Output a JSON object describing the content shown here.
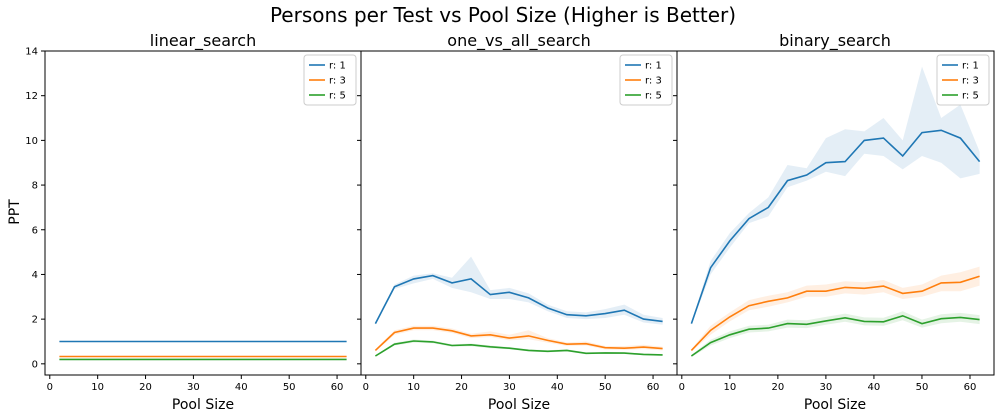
{
  "figure_title": "Persons per Test vs Pool Size (Higher is Better)",
  "colors": {
    "r1": "#1f77b4",
    "r3": "#ff7f0e",
    "r5": "#2ca02c"
  },
  "chart_data": [
    {
      "type": "line",
      "title": "linear_search",
      "xlabel": "Pool Size",
      "ylabel": "PPT",
      "xlim": [
        -1,
        65
      ],
      "ylim": [
        -0.5,
        14
      ],
      "xticks": [
        0,
        10,
        20,
        30,
        40,
        50,
        60
      ],
      "yticks": [
        0,
        2,
        4,
        6,
        8,
        10,
        12,
        14
      ],
      "legend": "top-right",
      "x": [
        2,
        6,
        10,
        14,
        18,
        22,
        26,
        30,
        34,
        38,
        42,
        46,
        50,
        54,
        58,
        62
      ],
      "series": [
        {
          "name": "r: 1",
          "color": "#1f77b4",
          "values": [
            1.0,
            1.0,
            1.0,
            1.0,
            1.0,
            1.0,
            1.0,
            1.0,
            1.0,
            1.0,
            1.0,
            1.0,
            1.0,
            1.0,
            1.0,
            1.0
          ],
          "lower": [
            0.98,
            0.98,
            0.98,
            0.98,
            0.98,
            0.98,
            0.98,
            0.98,
            0.98,
            0.98,
            0.98,
            0.98,
            0.98,
            0.98,
            0.98,
            0.98
          ],
          "upper": [
            1.02,
            1.02,
            1.02,
            1.02,
            1.02,
            1.02,
            1.02,
            1.02,
            1.02,
            1.02,
            1.02,
            1.02,
            1.02,
            1.02,
            1.02,
            1.02
          ]
        },
        {
          "name": "r: 3",
          "color": "#ff7f0e",
          "values": [
            0.33,
            0.33,
            0.33,
            0.33,
            0.33,
            0.33,
            0.33,
            0.33,
            0.33,
            0.33,
            0.33,
            0.33,
            0.33,
            0.33,
            0.33,
            0.33
          ],
          "lower": [
            0.32,
            0.32,
            0.32,
            0.32,
            0.32,
            0.32,
            0.32,
            0.32,
            0.32,
            0.32,
            0.32,
            0.32,
            0.32,
            0.32,
            0.32,
            0.32
          ],
          "upper": [
            0.34,
            0.34,
            0.34,
            0.34,
            0.34,
            0.34,
            0.34,
            0.34,
            0.34,
            0.34,
            0.34,
            0.34,
            0.34,
            0.34,
            0.34,
            0.34
          ]
        },
        {
          "name": "r: 5",
          "color": "#2ca02c",
          "values": [
            0.2,
            0.2,
            0.2,
            0.2,
            0.2,
            0.2,
            0.2,
            0.2,
            0.2,
            0.2,
            0.2,
            0.2,
            0.2,
            0.2,
            0.2,
            0.2
          ],
          "lower": [
            0.19,
            0.19,
            0.19,
            0.19,
            0.19,
            0.19,
            0.19,
            0.19,
            0.19,
            0.19,
            0.19,
            0.19,
            0.19,
            0.19,
            0.19,
            0.19
          ],
          "upper": [
            0.21,
            0.21,
            0.21,
            0.21,
            0.21,
            0.21,
            0.21,
            0.21,
            0.21,
            0.21,
            0.21,
            0.21,
            0.21,
            0.21,
            0.21,
            0.21
          ]
        }
      ]
    },
    {
      "type": "line",
      "title": "one_vs_all_search",
      "xlabel": "Pool Size",
      "xlim": [
        -1,
        65
      ],
      "ylim": [
        -0.5,
        14
      ],
      "xticks": [
        0,
        10,
        20,
        30,
        40,
        50,
        60
      ],
      "legend": "top-right",
      "x": [
        2,
        6,
        10,
        14,
        18,
        22,
        26,
        30,
        34,
        38,
        42,
        46,
        50,
        54,
        58,
        62
      ],
      "series": [
        {
          "name": "r: 1",
          "color": "#1f77b4",
          "values": [
            1.8,
            3.45,
            3.8,
            3.95,
            3.62,
            3.8,
            3.1,
            3.2,
            2.95,
            2.5,
            2.2,
            2.15,
            2.25,
            2.4,
            2.0,
            1.9
          ],
          "lower": [
            1.75,
            3.35,
            3.6,
            3.8,
            3.4,
            3.2,
            2.9,
            2.9,
            2.75,
            2.35,
            2.05,
            2.0,
            2.05,
            2.2,
            1.85,
            1.75
          ],
          "upper": [
            1.85,
            3.55,
            3.95,
            4.05,
            3.85,
            4.8,
            3.3,
            3.4,
            3.15,
            2.65,
            2.35,
            2.3,
            2.45,
            2.65,
            2.2,
            2.05
          ]
        },
        {
          "name": "r: 3",
          "color": "#ff7f0e",
          "values": [
            0.6,
            1.4,
            1.6,
            1.6,
            1.48,
            1.25,
            1.3,
            1.15,
            1.25,
            1.05,
            0.88,
            0.9,
            0.72,
            0.7,
            0.75,
            0.68
          ],
          "lower": [
            0.55,
            1.3,
            1.5,
            1.5,
            1.38,
            1.15,
            1.2,
            1.05,
            1.1,
            0.95,
            0.8,
            0.82,
            0.64,
            0.62,
            0.66,
            0.6
          ],
          "upper": [
            0.65,
            1.5,
            1.7,
            1.7,
            1.58,
            1.35,
            1.45,
            1.3,
            1.5,
            1.15,
            0.96,
            1.0,
            0.8,
            0.8,
            0.85,
            0.76
          ]
        },
        {
          "name": "r: 5",
          "color": "#2ca02c",
          "values": [
            0.35,
            0.88,
            1.02,
            0.98,
            0.82,
            0.85,
            0.76,
            0.7,
            0.6,
            0.56,
            0.6,
            0.47,
            0.49,
            0.48,
            0.42,
            0.4
          ],
          "lower": [
            0.32,
            0.82,
            0.95,
            0.92,
            0.76,
            0.79,
            0.7,
            0.65,
            0.55,
            0.51,
            0.55,
            0.43,
            0.45,
            0.44,
            0.38,
            0.36
          ],
          "upper": [
            0.38,
            0.94,
            1.09,
            1.04,
            0.88,
            0.91,
            0.82,
            0.75,
            0.65,
            0.61,
            0.65,
            0.51,
            0.53,
            0.52,
            0.46,
            0.44
          ]
        }
      ]
    },
    {
      "type": "line",
      "title": "binary_search",
      "xlabel": "Pool Size",
      "xlim": [
        -1,
        65
      ],
      "ylim": [
        -0.5,
        14
      ],
      "xticks": [
        0,
        10,
        20,
        30,
        40,
        50,
        60
      ],
      "legend": "top-right",
      "x": [
        2,
        6,
        10,
        14,
        18,
        22,
        26,
        30,
        34,
        38,
        42,
        46,
        50,
        54,
        58,
        62
      ],
      "series": [
        {
          "name": "r: 1",
          "color": "#1f77b4",
          "values": [
            1.8,
            4.3,
            5.5,
            6.5,
            7.0,
            8.2,
            8.45,
            9.0,
            9.05,
            10.0,
            10.1,
            9.3,
            10.35,
            10.45,
            10.1,
            9.05
          ],
          "lower": [
            1.75,
            4.0,
            5.2,
            6.3,
            6.6,
            7.9,
            8.2,
            8.6,
            8.4,
            9.4,
            9.3,
            8.7,
            9.3,
            9.0,
            8.3,
            8.5
          ],
          "upper": [
            1.85,
            4.6,
            5.85,
            6.75,
            7.45,
            8.9,
            8.75,
            10.1,
            10.5,
            10.4,
            11.0,
            10.0,
            13.3,
            11.0,
            11.6,
            9.5
          ]
        },
        {
          "name": "r: 3",
          "color": "#ff7f0e",
          "values": [
            0.6,
            1.5,
            2.1,
            2.6,
            2.8,
            2.95,
            3.25,
            3.25,
            3.42,
            3.38,
            3.48,
            3.15,
            3.25,
            3.62,
            3.65,
            3.92
          ],
          "lower": [
            0.55,
            1.3,
            1.9,
            2.4,
            2.55,
            2.75,
            3.0,
            3.0,
            3.15,
            3.1,
            3.2,
            2.9,
            3.0,
            3.25,
            3.25,
            3.5
          ],
          "upper": [
            0.65,
            1.7,
            2.3,
            2.85,
            3.05,
            3.2,
            3.5,
            3.55,
            3.7,
            3.65,
            3.75,
            3.4,
            3.55,
            3.95,
            4.1,
            4.35
          ]
        },
        {
          "name": "r: 5",
          "color": "#2ca02c",
          "values": [
            0.35,
            0.95,
            1.3,
            1.55,
            1.6,
            1.8,
            1.77,
            1.92,
            2.06,
            1.9,
            1.88,
            2.15,
            1.8,
            2.02,
            2.08,
            1.98
          ],
          "lower": [
            0.3,
            0.82,
            1.15,
            1.4,
            1.45,
            1.62,
            1.6,
            1.75,
            1.88,
            1.72,
            1.7,
            1.95,
            1.62,
            1.82,
            1.88,
            1.78
          ],
          "upper": [
            0.4,
            1.08,
            1.45,
            1.7,
            1.75,
            1.98,
            1.95,
            2.1,
            2.25,
            2.08,
            2.06,
            2.35,
            1.98,
            2.22,
            2.28,
            2.18
          ]
        }
      ]
    }
  ]
}
